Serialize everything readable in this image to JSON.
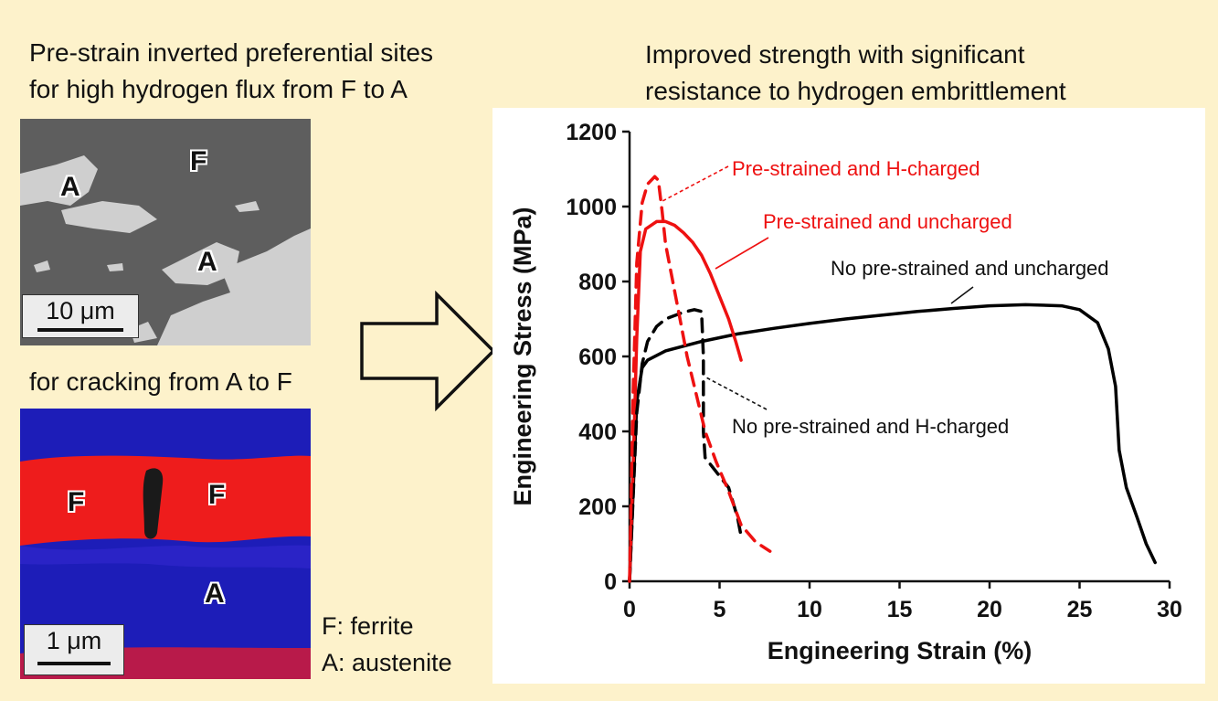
{
  "captions": {
    "left_line1": "Pre-strain inverted preferential sites",
    "left_line2": "for high hydrogen flux from F to A",
    "left_mid": "for cracking from A to F",
    "right_line1": "Improved strength with significant",
    "right_line2": "resistance to hydrogen embrittlement"
  },
  "sem_image": {
    "labels": {
      "ferrite": "F",
      "austenite_1": "A",
      "austenite_2": "A"
    },
    "scale_bar": "10 μm",
    "colors": {
      "matrix": "#5e5e5e",
      "phase": "#d8d8d8"
    }
  },
  "ebsd_image": {
    "labels": {
      "ferrite_1": "F",
      "ferrite_2": "F",
      "austenite": "A"
    },
    "scale_bar": "1 μm",
    "colors": {
      "ferrite": "#ee1c1c",
      "austenite": "#1d1db8"
    }
  },
  "legend": {
    "ferrite": "F: ferrite",
    "austenite": "A: austenite"
  },
  "arrow": {
    "icon": "hollow-right-arrow-icon"
  },
  "chart_data": {
    "type": "line",
    "xlabel": "Engineering Strain (%)",
    "ylabel": "Engineering Stress (MPa)",
    "xlim": [
      0,
      30
    ],
    "ylim": [
      0,
      1200
    ],
    "xticks": [
      0,
      5,
      10,
      15,
      20,
      25,
      30
    ],
    "yticks": [
      0,
      200,
      400,
      600,
      800,
      1000,
      1200
    ],
    "grid": false,
    "series": [
      {
        "name": "No pre-strained and uncharged",
        "color": "#000000",
        "style": "solid",
        "points": [
          [
            0,
            0
          ],
          [
            0.4,
            480
          ],
          [
            0.7,
            570
          ],
          [
            1,
            590
          ],
          [
            2,
            615
          ],
          [
            4,
            640
          ],
          [
            6,
            660
          ],
          [
            8,
            675
          ],
          [
            10,
            688
          ],
          [
            12,
            700
          ],
          [
            14,
            710
          ],
          [
            16,
            720
          ],
          [
            18,
            728
          ],
          [
            20,
            735
          ],
          [
            22,
            738
          ],
          [
            24,
            735
          ],
          [
            25,
            725
          ],
          [
            26,
            690
          ],
          [
            26.6,
            620
          ],
          [
            27,
            520
          ],
          [
            27.2,
            350
          ],
          [
            27.6,
            250
          ],
          [
            28.2,
            170
          ],
          [
            28.7,
            100
          ],
          [
            29.2,
            50
          ]
        ]
      },
      {
        "name": "Pre-strained and uncharged",
        "color": "#ee1111",
        "style": "solid",
        "points": [
          [
            0,
            0
          ],
          [
            0.2,
            300
          ],
          [
            0.4,
            650
          ],
          [
            0.6,
            880
          ],
          [
            0.9,
            940
          ],
          [
            1.5,
            960
          ],
          [
            2,
            960
          ],
          [
            2.5,
            950
          ],
          [
            3,
            930
          ],
          [
            3.5,
            905
          ],
          [
            4,
            870
          ],
          [
            4.5,
            820
          ],
          [
            5,
            760
          ],
          [
            5.5,
            700
          ],
          [
            5.9,
            640
          ],
          [
            6.2,
            590
          ]
        ]
      },
      {
        "name": "No pre-strained and H-charged",
        "color": "#000000",
        "style": "dashed",
        "points": [
          [
            0,
            0
          ],
          [
            0.4,
            450
          ],
          [
            0.7,
            580
          ],
          [
            1,
            640
          ],
          [
            1.5,
            680
          ],
          [
            2,
            700
          ],
          [
            3,
            718
          ],
          [
            3.6,
            725
          ],
          [
            4,
            720
          ],
          [
            4.1,
            600
          ],
          [
            4.1,
            400
          ],
          [
            4.2,
            330
          ],
          [
            5.5,
            250
          ],
          [
            6,
            170
          ],
          [
            6.2,
            120
          ]
        ]
      },
      {
        "name": "Pre-strained and H-charged",
        "color": "#ee1111",
        "style": "dashed",
        "points": [
          [
            0,
            0
          ],
          [
            0.2,
            500
          ],
          [
            0.4,
            850
          ],
          [
            0.7,
            1010
          ],
          [
            1,
            1060
          ],
          [
            1.4,
            1080
          ],
          [
            1.6,
            1070
          ],
          [
            1.8,
            990
          ],
          [
            2,
            900
          ],
          [
            2.4,
            800
          ],
          [
            2.8,
            700
          ],
          [
            3.2,
            600
          ],
          [
            3.7,
            500
          ],
          [
            4.2,
            400
          ],
          [
            4.8,
            320
          ],
          [
            5.5,
            240
          ],
          [
            6.2,
            150
          ],
          [
            7,
            105
          ],
          [
            7.8,
            80
          ]
        ]
      }
    ],
    "annotations": [
      {
        "text": "Pre-strained and H-charged",
        "series": 3
      },
      {
        "text": "Pre-strained and uncharged",
        "series": 1
      },
      {
        "text": "No pre-strained and uncharged",
        "series": 0
      },
      {
        "text": "No pre-strained and H-charged",
        "series": 2
      }
    ]
  }
}
